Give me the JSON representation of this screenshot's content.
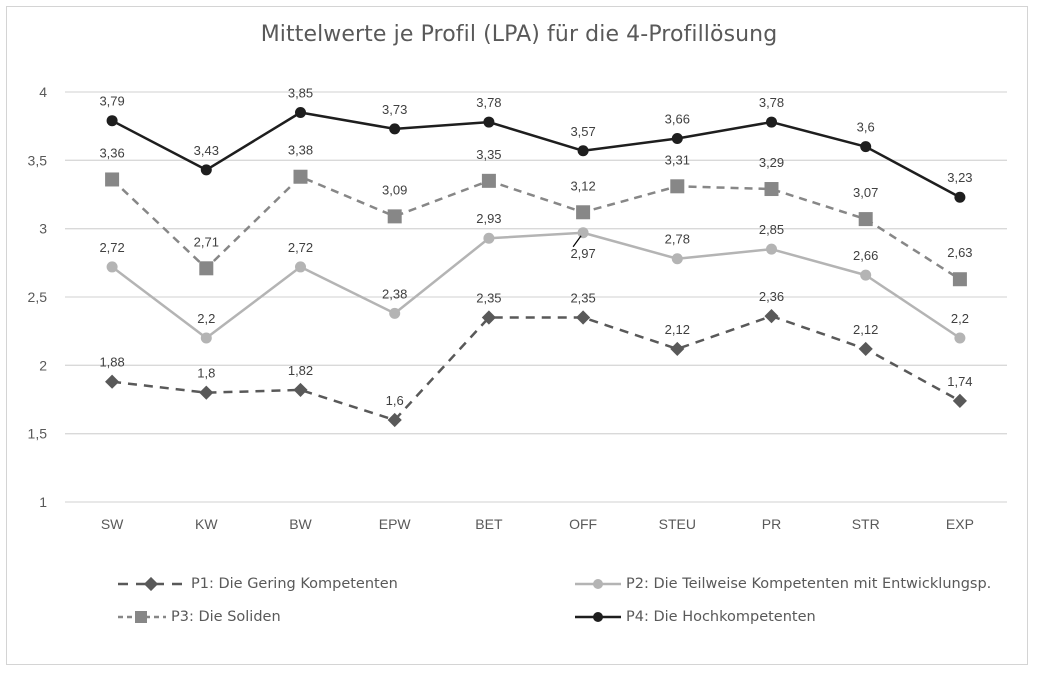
{
  "chart_data": {
    "type": "line",
    "title": "Mittelwerte je Profil (LPA) für die 4-Profillösung",
    "xlabel": "",
    "ylabel": "",
    "categories": [
      "SW",
      "KW",
      "BW",
      "EPW",
      "BET",
      "OFF",
      "STEU",
      "PR",
      "STR",
      "EXP"
    ],
    "ylim": [
      1,
      4
    ],
    "yticks": [
      1,
      1.5,
      2,
      2.5,
      3,
      3.5,
      4
    ],
    "ytick_labels": [
      "1",
      "1,5",
      "2",
      "2,5",
      "3",
      "3,5",
      "4"
    ],
    "grid": true,
    "legend_placement": "bottom",
    "series": [
      {
        "name": "P1: Die Gering Kompetenten",
        "values": [
          1.88,
          1.8,
          1.82,
          1.6,
          2.35,
          2.35,
          2.12,
          2.36,
          2.12,
          1.74
        ],
        "labels": [
          "1,88",
          "1,8",
          "1,82",
          "1,6",
          "2,35",
          "2,35",
          "2,12",
          "2,36",
          "2,12",
          "1,74"
        ],
        "color": "#595959",
        "marker": "diamond",
        "dash": "dashed"
      },
      {
        "name": "P2: Die Teilweise Kompetenten mit Entwicklungsp.",
        "values": [
          2.72,
          2.2,
          2.72,
          2.38,
          2.93,
          2.97,
          2.78,
          2.85,
          2.66,
          2.2
        ],
        "labels": [
          "2,72",
          "2,2",
          "2,72",
          "2,38",
          "2,93",
          "2,97",
          "2,78",
          "2,85",
          "2,66",
          "2,2"
        ],
        "color": "#b4b4b4",
        "marker": "circle",
        "dash": "solid"
      },
      {
        "name": "P3: Die  Soliden",
        "values": [
          3.36,
          2.71,
          3.38,
          3.09,
          3.35,
          3.12,
          3.31,
          3.29,
          3.07,
          2.63
        ],
        "labels": [
          "3,36",
          "2,71",
          "3,38",
          "3,09",
          "3,35",
          "3,12",
          "3,31",
          "3,29",
          "3,07",
          "2,63"
        ],
        "color": "#878787",
        "marker": "square",
        "dash": "dashed"
      },
      {
        "name": "P4: Die Hochkompetenten",
        "values": [
          3.79,
          3.43,
          3.85,
          3.73,
          3.78,
          3.57,
          3.66,
          3.78,
          3.6,
          3.23
        ],
        "labels": [
          "3,79",
          "3,43",
          "3,85",
          "3,73",
          "3,78",
          "3,57",
          "3,66",
          "3,78",
          "3,6",
          "3,23"
        ],
        "color": "#1e1e1e",
        "marker": "circle",
        "dash": "solid"
      }
    ]
  }
}
